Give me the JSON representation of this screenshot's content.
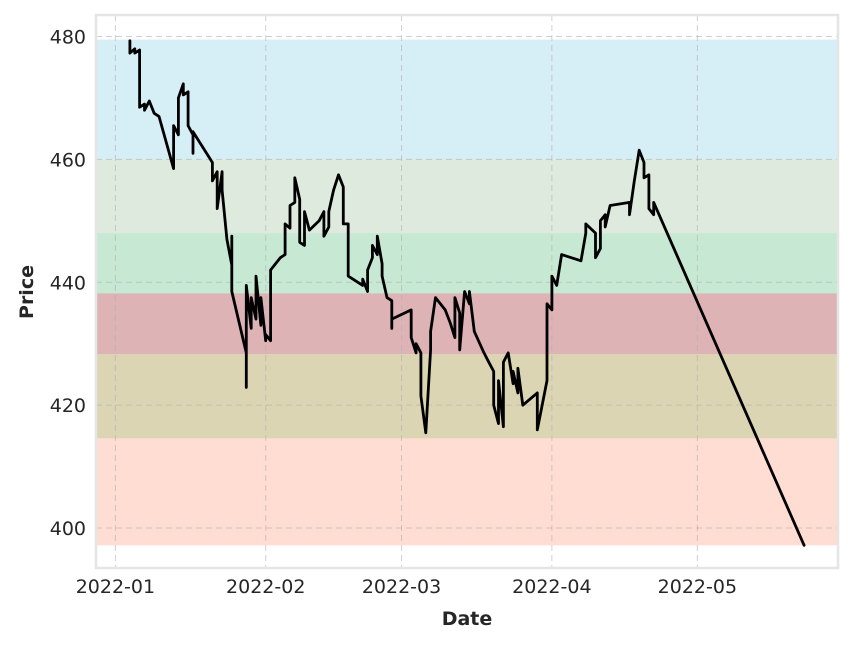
{
  "chart_data": {
    "type": "line",
    "title": "",
    "xlabel": "Date",
    "ylabel": "Price",
    "x_axis": {
      "kind": "date",
      "xlim": [
        "2021-12-28",
        "2022-05-30"
      ]
    },
    "ylim": [
      393.5,
      483.5
    ],
    "grid": true,
    "xticks": [
      {
        "date": "2022-01-01",
        "label": "2022-01"
      },
      {
        "date": "2022-02-01",
        "label": "2022-02"
      },
      {
        "date": "2022-03-01",
        "label": "2022-03"
      },
      {
        "date": "2022-04-01",
        "label": "2022-04"
      },
      {
        "date": "2022-05-01",
        "label": "2022-05"
      }
    ],
    "yticks": [
      {
        "value": 400,
        "label": "400"
      },
      {
        "value": 420,
        "label": "420"
      },
      {
        "value": 440,
        "label": "440"
      },
      {
        "value": 460,
        "label": "460"
      },
      {
        "value": 480,
        "label": "480"
      }
    ],
    "bands": [
      {
        "y0": 460.0,
        "y1": 479.5,
        "color": "#aadcea"
      },
      {
        "y0": 448.0,
        "y1": 460.0,
        "color": "#b8d3b8"
      },
      {
        "y0": 438.2,
        "y1": 448.0,
        "color": "#8ad0a6"
      },
      {
        "y0": 428.3,
        "y1": 438.2,
        "color": "#b86066"
      },
      {
        "y0": 414.6,
        "y1": 428.3,
        "color": "#b6a860"
      },
      {
        "y0": 397.2,
        "y1": 414.6,
        "color": "#ffb7a0"
      }
    ],
    "series": [
      {
        "color": "#000000",
        "points": [
          [
            "2022-01-04",
            479.3
          ],
          [
            "2022-01-04",
            477.3
          ],
          [
            "2022-01-05",
            478.0
          ],
          [
            "2022-01-05",
            477.3
          ],
          [
            "2022-01-06",
            477.8
          ],
          [
            "2022-01-06",
            468.5
          ],
          [
            "2022-01-07",
            469.0
          ],
          [
            "2022-01-07",
            468.0
          ],
          [
            "2022-01-08",
            469.5
          ],
          [
            "2022-01-09",
            467.5
          ],
          [
            "2022-01-10",
            467.0
          ],
          [
            "2022-01-13",
            458.5
          ],
          [
            "2022-01-13",
            465.5
          ],
          [
            "2022-01-14",
            464.0
          ],
          [
            "2022-01-14",
            470.0
          ],
          [
            "2022-01-15",
            472.3
          ],
          [
            "2022-01-15",
            470.5
          ],
          [
            "2022-01-16",
            471.0
          ],
          [
            "2022-01-16",
            465.5
          ],
          [
            "2022-01-17",
            464.0
          ],
          [
            "2022-01-17",
            461.0
          ],
          [
            "2022-01-17",
            464.5
          ],
          [
            "2022-01-21",
            459.5
          ],
          [
            "2022-01-21",
            456.5
          ],
          [
            "2022-01-22",
            458.0
          ],
          [
            "2022-01-22",
            452.0
          ],
          [
            "2022-01-23",
            458.0
          ],
          [
            "2022-01-23",
            455.0
          ],
          [
            "2022-01-24",
            447.0
          ],
          [
            "2022-01-25",
            442.8
          ],
          [
            "2022-01-25",
            447.5
          ],
          [
            "2022-01-25",
            438.5
          ],
          [
            "2022-01-28",
            428.5
          ],
          [
            "2022-01-28",
            422.9
          ],
          [
            "2022-01-28",
            439.5
          ],
          [
            "2022-01-29",
            432.5
          ],
          [
            "2022-01-29",
            437.5
          ],
          [
            "2022-01-30",
            434.0
          ],
          [
            "2022-01-30",
            441.0
          ],
          [
            "2022-01-31",
            433.0
          ],
          [
            "2022-01-31",
            437.5
          ],
          [
            "2022-02-01",
            430.5
          ],
          [
            "2022-02-01",
            431.5
          ],
          [
            "2022-02-02",
            430.5
          ],
          [
            "2022-02-02",
            442.0
          ],
          [
            "2022-02-04",
            444.0
          ],
          [
            "2022-02-05",
            444.5
          ],
          [
            "2022-02-05",
            449.5
          ],
          [
            "2022-02-06",
            448.8
          ],
          [
            "2022-02-06",
            452.5
          ],
          [
            "2022-02-07",
            453.0
          ],
          [
            "2022-02-07",
            457.0
          ],
          [
            "2022-02-08",
            453.5
          ],
          [
            "2022-02-08",
            446.5
          ],
          [
            "2022-02-09",
            446.0
          ],
          [
            "2022-02-09",
            451.5
          ],
          [
            "2022-02-10",
            448.5
          ],
          [
            "2022-02-12",
            450.0
          ],
          [
            "2022-02-13",
            451.5
          ],
          [
            "2022-02-13",
            447.5
          ],
          [
            "2022-02-14",
            449.0
          ],
          [
            "2022-02-14",
            451.5
          ],
          [
            "2022-02-15",
            455.0
          ],
          [
            "2022-02-16",
            457.5
          ],
          [
            "2022-02-17",
            455.5
          ],
          [
            "2022-02-17",
            449.5
          ],
          [
            "2022-02-18",
            449.5
          ],
          [
            "2022-02-18",
            441.0
          ],
          [
            "2022-02-21",
            439.5
          ],
          [
            "2022-02-21",
            440.5
          ],
          [
            "2022-02-22",
            438.5
          ],
          [
            "2022-02-22",
            442.0
          ],
          [
            "2022-02-23",
            444.0
          ],
          [
            "2022-02-23",
            446.0
          ],
          [
            "2022-02-24",
            444.5
          ],
          [
            "2022-02-24",
            447.5
          ],
          [
            "2022-02-25",
            443.0
          ],
          [
            "2022-02-25",
            441.0
          ],
          [
            "2022-02-26",
            437.5
          ],
          [
            "2022-02-27",
            437.0
          ],
          [
            "2022-02-27",
            432.5
          ],
          [
            "2022-02-27",
            434.0
          ],
          [
            "2022-03-03",
            435.5
          ],
          [
            "2022-03-03",
            431.0
          ],
          [
            "2022-03-04",
            428.5
          ],
          [
            "2022-03-04",
            430.0
          ],
          [
            "2022-03-05",
            428.5
          ],
          [
            "2022-03-05",
            421.5
          ],
          [
            "2022-03-06",
            415.5
          ],
          [
            "2022-03-07",
            429.0
          ],
          [
            "2022-03-07",
            432.0
          ],
          [
            "2022-03-08",
            437.5
          ],
          [
            "2022-03-10",
            435.5
          ],
          [
            "2022-03-11",
            433.5
          ],
          [
            "2022-03-12",
            431.0
          ],
          [
            "2022-03-12",
            437.5
          ],
          [
            "2022-03-13",
            435.0
          ],
          [
            "2022-03-13",
            429.0
          ],
          [
            "2022-03-14",
            438.5
          ],
          [
            "2022-03-15",
            436.5
          ],
          [
            "2022-03-15",
            438.5
          ],
          [
            "2022-03-16",
            432.0
          ],
          [
            "2022-03-18",
            428.5
          ],
          [
            "2022-03-19",
            427.0
          ],
          [
            "2022-03-20",
            425.5
          ],
          [
            "2022-03-20",
            420.0
          ],
          [
            "2022-03-21",
            417.0
          ],
          [
            "2022-03-21",
            424.0
          ],
          [
            "2022-03-22",
            416.5
          ],
          [
            "2022-03-22",
            427.0
          ],
          [
            "2022-03-23",
            428.5
          ],
          [
            "2022-03-24",
            423.5
          ],
          [
            "2022-03-24",
            425.5
          ],
          [
            "2022-03-25",
            422.0
          ],
          [
            "2022-03-25",
            426.0
          ],
          [
            "2022-03-26",
            420.0
          ],
          [
            "2022-03-29",
            422.0
          ],
          [
            "2022-03-29",
            416.0
          ],
          [
            "2022-03-31",
            424.0
          ],
          [
            "2022-03-31",
            436.5
          ],
          [
            "2022-04-01",
            435.5
          ],
          [
            "2022-04-01",
            441.0
          ],
          [
            "2022-04-02",
            439.5
          ],
          [
            "2022-04-03",
            444.5
          ],
          [
            "2022-04-07",
            443.5
          ],
          [
            "2022-04-08",
            448.0
          ],
          [
            "2022-04-08",
            449.5
          ],
          [
            "2022-04-10",
            448.0
          ],
          [
            "2022-04-10",
            444.0
          ],
          [
            "2022-04-11",
            445.5
          ],
          [
            "2022-04-11",
            450.0
          ],
          [
            "2022-04-12",
            451.0
          ],
          [
            "2022-04-12",
            449.0
          ],
          [
            "2022-04-13",
            452.5
          ],
          [
            "2022-04-17",
            453.0
          ],
          [
            "2022-04-17",
            451.0
          ],
          [
            "2022-04-18",
            456.5
          ],
          [
            "2022-04-19",
            461.5
          ],
          [
            "2022-04-20",
            459.5
          ],
          [
            "2022-04-20",
            457.0
          ],
          [
            "2022-04-21",
            457.5
          ],
          [
            "2022-04-21",
            452.0
          ],
          [
            "2022-04-22",
            451.0
          ],
          [
            "2022-04-22",
            453.0
          ],
          [
            "2022-05-23",
            397.2
          ]
        ]
      }
    ]
  }
}
